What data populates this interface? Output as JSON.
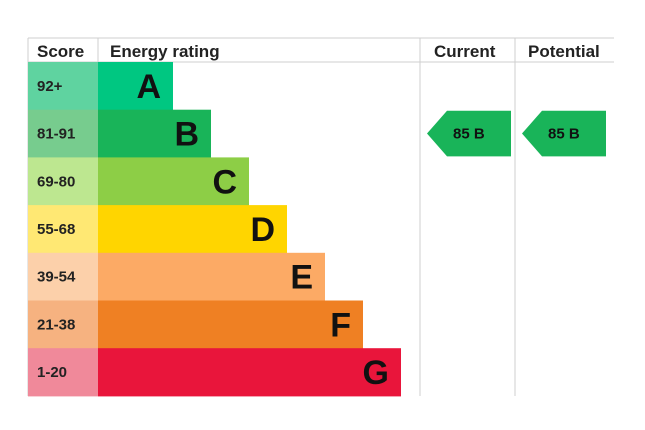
{
  "headers": {
    "score": "Score",
    "energy_rating": "Energy rating",
    "current": "Current",
    "potential": "Potential"
  },
  "chart_data": {
    "type": "bar",
    "bands": [
      {
        "letter": "A",
        "range": "92+",
        "color": "#00c781",
        "score_color": "#5fd3a0"
      },
      {
        "letter": "B",
        "range": "81-91",
        "color": "#19b459",
        "score_color": "#77cc8e"
      },
      {
        "letter": "C",
        "range": "69-80",
        "color": "#8dce46",
        "score_color": "#bde790"
      },
      {
        "letter": "D",
        "range": "55-68",
        "color": "#ffd500",
        "score_color": "#ffe873"
      },
      {
        "letter": "E",
        "range": "39-54",
        "color": "#fcaa65",
        "score_color": "#fcd0aa"
      },
      {
        "letter": "F",
        "range": "21-38",
        "color": "#ef8023",
        "score_color": "#f6b280"
      },
      {
        "letter": "G",
        "range": "1-20",
        "color": "#e9153b",
        "score_color": "#f0899a"
      }
    ],
    "current": {
      "value": 85,
      "band": "B",
      "color": "#19b459"
    },
    "potential": {
      "value": 85,
      "band": "B",
      "color": "#19b459"
    }
  }
}
